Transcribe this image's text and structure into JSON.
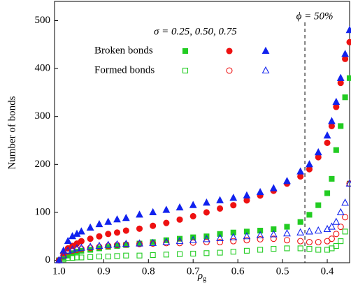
{
  "chart_data": {
    "type": "scatter",
    "ylabel": "Number of bonds",
    "xlabel": {
      "base": "ρ",
      "sub": "g"
    },
    "xlim": [
      1.01,
      0.35
    ],
    "xticks": [
      {
        "value": 1.0,
        "label": "1.0"
      },
      0.9,
      0.8,
      0.7,
      0.6,
      0.5,
      0.4
    ],
    "ylim": [
      -5,
      540
    ],
    "yticks": [
      0,
      100,
      200,
      300,
      400,
      500
    ],
    "annotation": {
      "text": "ϕ = 50%",
      "x": 0.45
    },
    "legend": {
      "title": "σ = 0.25, 0.50, 0.75"
    },
    "x": [
      1.0,
      0.99,
      0.98,
      0.97,
      0.96,
      0.95,
      0.93,
      0.91,
      0.89,
      0.87,
      0.85,
      0.82,
      0.79,
      0.76,
      0.73,
      0.7,
      0.67,
      0.64,
      0.61,
      0.58,
      0.55,
      0.52,
      0.49,
      0.46,
      0.44,
      0.42,
      0.4,
      0.39,
      0.38,
      0.37,
      0.36,
      0.35
    ],
    "series": [
      {
        "name": "Broken bonds",
        "filled": true,
        "subseries": [
          {
            "color": "#22cc22",
            "marker": "square",
            "values": [
              0,
              5,
              10,
              15,
              18,
              20,
              22,
              25,
              28,
              30,
              32,
              35,
              38,
              42,
              45,
              48,
              50,
              55,
              58,
              60,
              62,
              65,
              70,
              80,
              95,
              115,
              140,
              170,
              230,
              280,
              340,
              380
            ]
          },
          {
            "color": "#ee1111",
            "marker": "circle",
            "values": [
              0,
              15,
              25,
              30,
              35,
              40,
              45,
              50,
              55,
              58,
              62,
              66,
              72,
              78,
              85,
              92,
              100,
              108,
              115,
              125,
              135,
              145,
              160,
              175,
              190,
              215,
              245,
              280,
              320,
              370,
              420,
              455
            ]
          },
          {
            "color": "#1122ee",
            "marker": "triangle",
            "values": [
              0,
              20,
              40,
              50,
              55,
              60,
              68,
              75,
              80,
              85,
              88,
              95,
              100,
              105,
              110,
              115,
              120,
              125,
              130,
              135,
              142,
              150,
              165,
              185,
              200,
              225,
              260,
              290,
              330,
              380,
              430,
              480
            ]
          }
        ]
      },
      {
        "name": "Formed bonds",
        "filled": false,
        "subseries": [
          {
            "color": "#22cc22",
            "marker": "square",
            "values": [
              0,
              2,
              5,
              5,
              6,
              6,
              7,
              8,
              8,
              9,
              10,
              10,
              11,
              12,
              13,
              14,
              15,
              16,
              18,
              20,
              22,
              24,
              25,
              25,
              24,
              22,
              22,
              25,
              30,
              40,
              60,
              160
            ]
          },
          {
            "color": "#ee1111",
            "marker": "circle",
            "values": [
              0,
              10,
              18,
              20,
              22,
              24,
              26,
              28,
              30,
              32,
              33,
              34,
              35,
              36,
              36,
              37,
              38,
              38,
              40,
              42,
              44,
              45,
              42,
              40,
              38,
              38,
              40,
              45,
              55,
              70,
              90,
              160
            ]
          },
          {
            "color": "#1122ee",
            "marker": "triangle",
            "values": [
              0,
              10,
              20,
              22,
              25,
              26,
              28,
              30,
              32,
              33,
              34,
              35,
              36,
              38,
              40,
              42,
              44,
              46,
              48,
              50,
              52,
              54,
              56,
              58,
              60,
              62,
              65,
              70,
              80,
              100,
              120,
              160
            ]
          }
        ]
      }
    ]
  }
}
